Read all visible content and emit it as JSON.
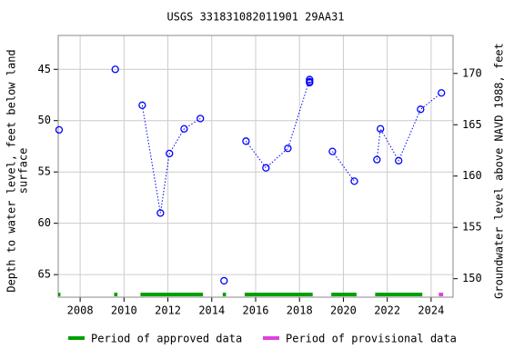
{
  "chart_data": {
    "type": "line",
    "title": "USGS 331831082011901 29AA31",
    "ylabel": [
      "Depth to water level, feet below land",
      "surface"
    ],
    "y2label": "Groundwater level above NAVD 1988, feet",
    "x": [
      2007.04,
      null,
      2009.6,
      null,
      2010.83,
      2011.66,
      2012.07,
      2012.74,
      2013.48,
      null,
      2014.56,
      null,
      2015.56,
      2016.47,
      2017.47,
      2018.46,
      2018.46,
      2018.46,
      null,
      2019.5,
      2020.5,
      null,
      2021.53,
      2021.69,
      2022.52,
      2023.52,
      2024.47
    ],
    "series": [
      {
        "color": "#0000ff",
        "values": [
          50.9,
          null,
          45.0,
          null,
          48.5,
          59.0,
          53.2,
          50.8,
          49.8,
          null,
          65.6,
          null,
          52.0,
          54.6,
          52.7,
          46.0,
          46.2,
          46.3,
          null,
          53.0,
          55.9,
          null,
          53.8,
          50.8,
          53.9,
          48.9,
          47.3
        ]
      }
    ],
    "xlim": [
      2007,
      2025
    ],
    "xticks": [
      2008,
      2010,
      2012,
      2014,
      2016,
      2018,
      2020,
      2022,
      2024
    ],
    "ylim": [
      41.7,
      67.2
    ],
    "y_inverted": true,
    "yticks": [
      45,
      50,
      55,
      60,
      65
    ],
    "y2lim": [
      148.2,
      173.7
    ],
    "y2ticks": [
      150,
      155,
      160,
      165,
      170
    ],
    "grid": true,
    "periods": [
      {
        "name": "Period of approved data",
        "color": "#00a000",
        "ranges": [
          [
            2007.0,
            2007.1
          ],
          [
            2009.55,
            2009.7
          ],
          [
            2010.75,
            2013.6
          ],
          [
            2014.5,
            2014.65
          ],
          [
            2015.5,
            2018.6
          ],
          [
            2019.45,
            2020.6
          ],
          [
            2021.45,
            2023.6
          ]
        ]
      },
      {
        "name": "Period of provisional data",
        "color": "#e040e0",
        "ranges": [
          [
            2024.35,
            2024.55
          ]
        ]
      }
    ]
  }
}
